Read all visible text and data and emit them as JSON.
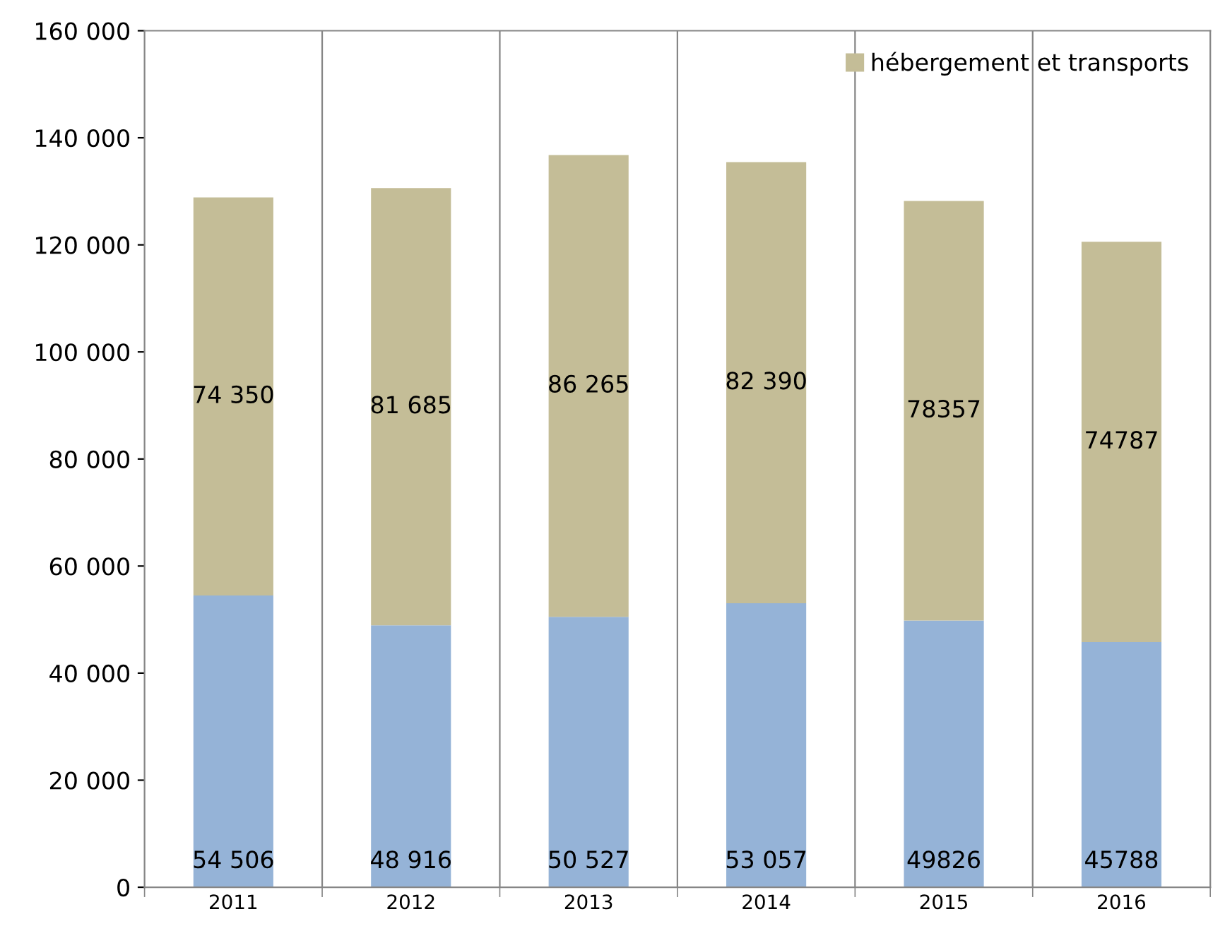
{
  "chart_data": {
    "type": "bar",
    "stacked": true,
    "categories": [
      "2011",
      "2012",
      "2013",
      "2014",
      "2015",
      "2016"
    ],
    "series": [
      {
        "color": "#95b3d7",
        "values": [
          54506,
          48916,
          50527,
          53057,
          49826,
          45788
        ],
        "value_labels": [
          "54 506",
          "48 916",
          "50 527",
          "53 057",
          "49826",
          "45788"
        ]
      },
      {
        "name": "hébergement et transports",
        "color": "#c4bd97",
        "values": [
          74350,
          81685,
          86265,
          82390,
          78357,
          74787
        ],
        "value_labels": [
          "74 350",
          "81 685",
          "86 265",
          "82 390",
          "78357",
          "74787"
        ]
      }
    ],
    "ylim": [
      0,
      160000
    ],
    "yticks": [
      {
        "value": 0,
        "label": "0"
      },
      {
        "value": 20000,
        "label": "20 000"
      },
      {
        "value": 40000,
        "label": "40 000"
      },
      {
        "value": 60000,
        "label": "60 000"
      },
      {
        "value": 80000,
        "label": "80 000"
      },
      {
        "value": 100000,
        "label": "100 000"
      },
      {
        "value": 120000,
        "label": "120 000"
      },
      {
        "value": 140000,
        "label": "140 000"
      },
      {
        "value": 160000,
        "label": "160 000"
      }
    ],
    "grid": "x",
    "legend": "top right"
  }
}
